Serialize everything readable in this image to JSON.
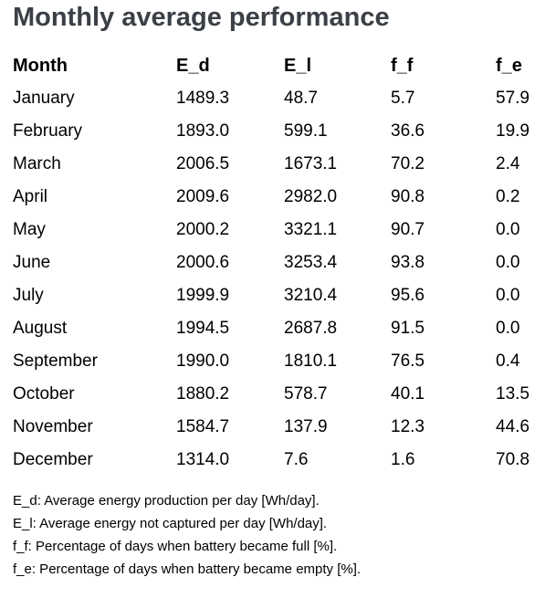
{
  "section": {
    "title": "Monthly average performance"
  },
  "colors": {
    "title_text": "#3b4046",
    "body_text": "#000000",
    "background": "#ffffff"
  },
  "chart_data": {
    "type": "table",
    "title": "Monthly average performance",
    "columns": [
      "Month",
      "E_d",
      "E_l",
      "f_f",
      "f_e"
    ],
    "rows": [
      [
        "January",
        "1489.3",
        "48.7",
        "5.7",
        "57.9"
      ],
      [
        "February",
        "1893.0",
        "599.1",
        "36.6",
        "19.9"
      ],
      [
        "March",
        "2006.5",
        "1673.1",
        "70.2",
        "2.4"
      ],
      [
        "April",
        "2009.6",
        "2982.0",
        "90.8",
        "0.2"
      ],
      [
        "May",
        "2000.2",
        "3321.1",
        "90.7",
        "0.0"
      ],
      [
        "June",
        "2000.6",
        "3253.4",
        "93.8",
        "0.0"
      ],
      [
        "July",
        "1999.9",
        "3210.4",
        "95.6",
        "0.0"
      ],
      [
        "August",
        "1994.5",
        "2687.8",
        "91.5",
        "0.0"
      ],
      [
        "September",
        "1990.0",
        "1810.1",
        "76.5",
        "0.4"
      ],
      [
        "October",
        "1880.2",
        "578.7",
        "40.1",
        "13.5"
      ],
      [
        "November",
        "1584.7",
        "137.9",
        "12.3",
        "44.6"
      ],
      [
        "December",
        "1314.0",
        "7.6",
        "1.6",
        "70.8"
      ]
    ],
    "footnotes": [
      "E_d: Average energy production per day [Wh/day].",
      "E_l: Average energy not captured per day [Wh/day].",
      "f_f: Percentage of days when battery became full [%].",
      "f_e: Percentage of days when battery became empty [%]."
    ],
    "layout": {
      "grid": "off",
      "borders": "none",
      "column_alignment": "left"
    }
  }
}
